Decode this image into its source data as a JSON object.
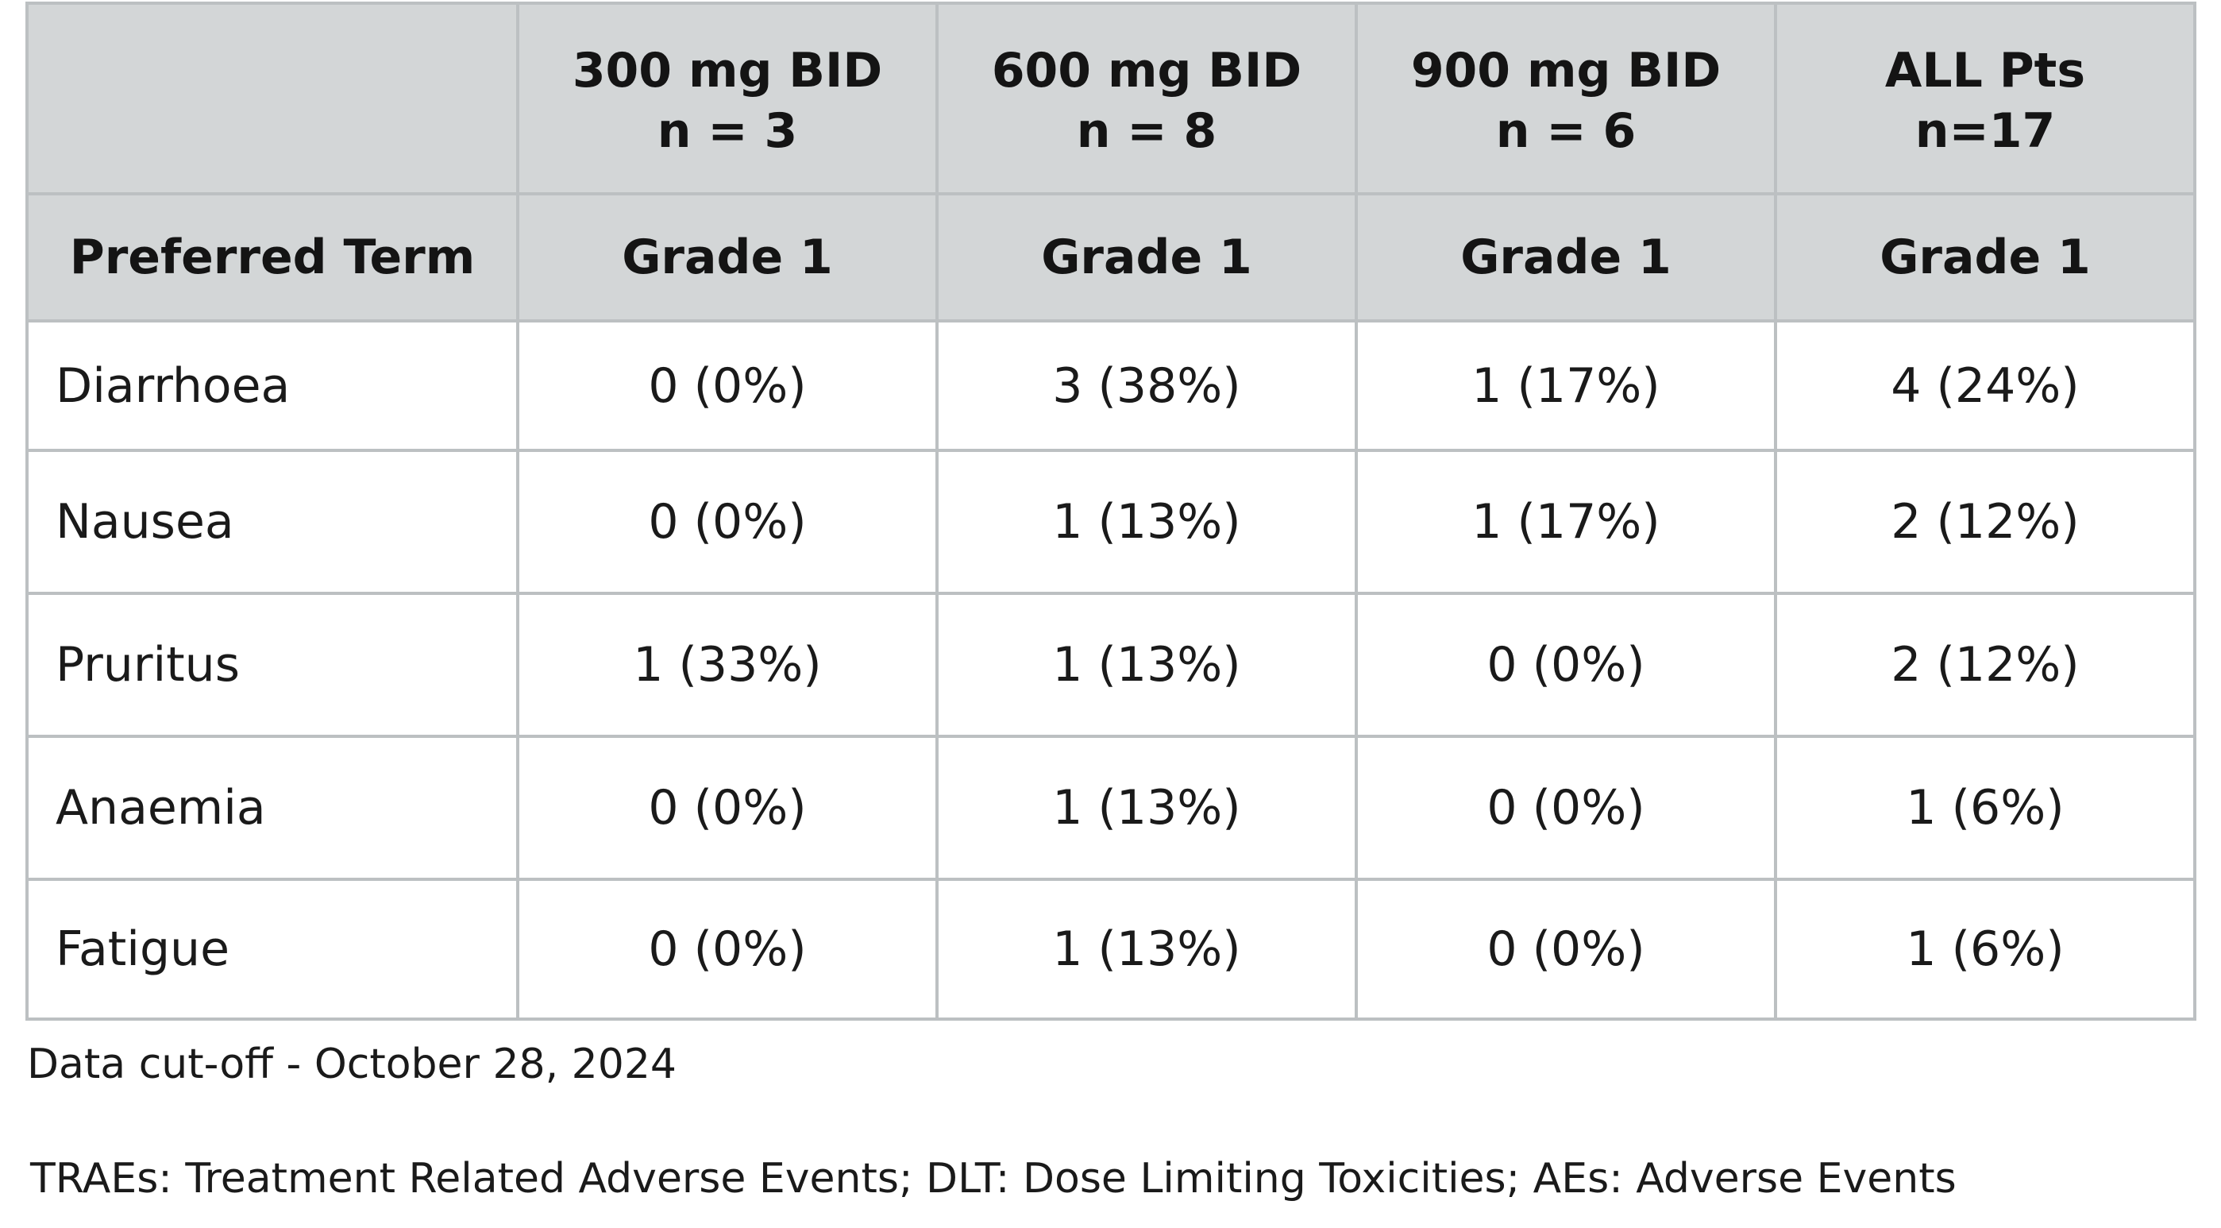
{
  "table": {
    "header_row1": [
      {
        "line1": "",
        "line2": ""
      },
      {
        "line1": "300 mg BID",
        "line2": "n = 3"
      },
      {
        "line1": "600 mg BID",
        "line2": "n = 8"
      },
      {
        "line1": "900 mg BID",
        "line2": "n = 6"
      },
      {
        "line1": "ALL Pts",
        "line2": "n=17"
      }
    ],
    "header_row2": [
      "Preferred Term",
      "Grade 1",
      "Grade 1",
      "Grade 1",
      "Grade 1"
    ],
    "rows": [
      {
        "term": "Diarrhoea",
        "values": [
          "0 (0%)",
          "3 (38%)",
          "1 (17%)",
          "4 (24%)"
        ]
      },
      {
        "term": "Nausea",
        "values": [
          "0 (0%)",
          "1 (13%)",
          "1 (17%)",
          "2 (12%)"
        ]
      },
      {
        "term": "Pruritus",
        "values": [
          "1 (33%)",
          "1 (13%)",
          "0 (0%)",
          "2 (12%)"
        ]
      },
      {
        "term": "Anaemia",
        "values": [
          "0 (0%)",
          "1 (13%)",
          "0 (0%)",
          "1 (6%)"
        ]
      },
      {
        "term": "Fatigue",
        "values": [
          "0 (0%)",
          "1 (13%)",
          "0 (0%)",
          "1 (6%)"
        ]
      }
    ]
  },
  "footnotes": {
    "cutoff": "Data cut-off - October 28, 2024",
    "abbreviations": "TRAEs: Treatment Related Adverse Events; DLT: Dose Limiting Toxicities; AEs: Adverse Events"
  },
  "colors": {
    "header_bg": "#d3d6d7",
    "grid_line": "#bcc0c2",
    "text": "#1a1a1a"
  }
}
